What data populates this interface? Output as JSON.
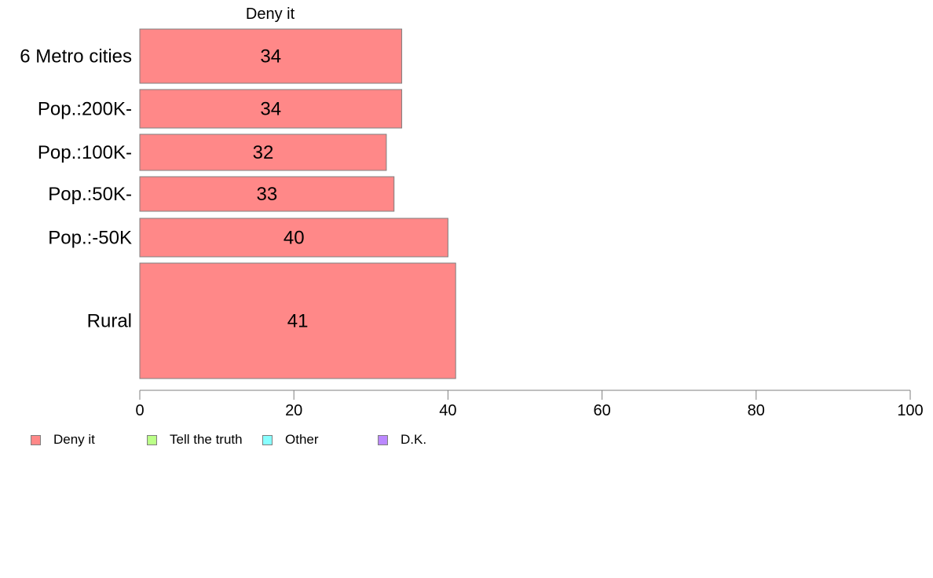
{
  "chart_data": {
    "type": "bar",
    "orientation": "horizontal",
    "panel_title": "Deny it",
    "categories": [
      "6 Metro cities",
      "Pop.:200K-",
      "Pop.:100K-",
      "Pop.:50K-",
      "Pop.:-50K",
      "Rural"
    ],
    "series": [
      {
        "name": "Deny it",
        "values": [
          34,
          34,
          32,
          33,
          40,
          41
        ],
        "color": "#ff8888"
      }
    ],
    "labels": [
      "34",
      "34",
      "32",
      "33",
      "40",
      "41"
    ],
    "xlim": [
      0,
      100
    ],
    "xticks": [
      "0",
      "20",
      "40",
      "60",
      "80",
      "100"
    ],
    "grid": false,
    "legend": {
      "position": "bottom-left",
      "items": [
        {
          "name": "Deny it",
          "color": "#ff8888"
        },
        {
          "name": "Tell the truth",
          "color": "#bbff88"
        },
        {
          "name": "Other",
          "color": "#88ffff"
        },
        {
          "name": "D.K.",
          "color": "#bb88ff"
        }
      ]
    }
  }
}
